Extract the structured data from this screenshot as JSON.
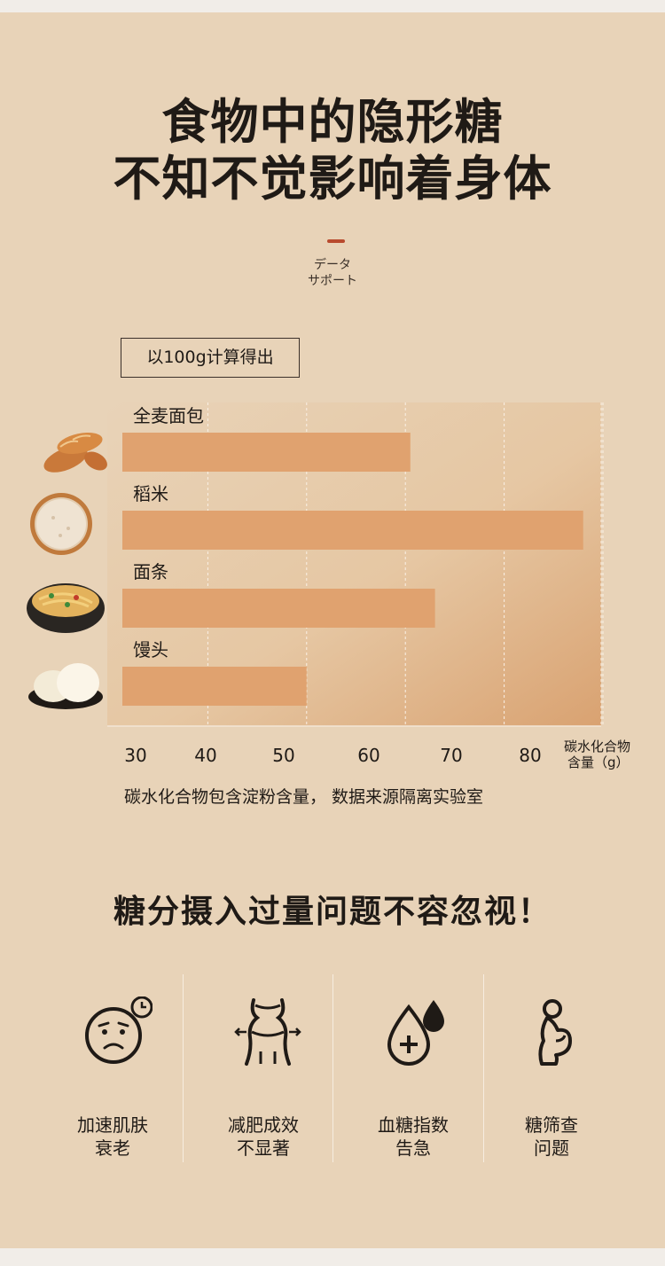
{
  "header": {
    "title_line1": "食物中的隐形糖",
    "title_line2": "不知不觉影响着身体",
    "tag_line1": "データ",
    "tag_line2": "サポート"
  },
  "note": "以100g计算得出",
  "chart_data": {
    "type": "bar",
    "orientation": "horizontal",
    "categories": [
      "全麦面包",
      "稻米",
      "面条",
      "馒头"
    ],
    "values": [
      60.5,
      78,
      63,
      50
    ],
    "xlim": [
      30,
      80
    ],
    "xticks": [
      "30",
      "40",
      "50",
      "60",
      "70",
      "80"
    ],
    "xlabel_line1": "碳水化合物",
    "xlabel_line2": "含量（g）",
    "grid": "vertical-dashed",
    "bar_color": "#e0a26f"
  },
  "footnote": "碳水化合物包含淀粉含量， 数据来源隔离实验室",
  "section2": {
    "title": "糖分摄入过量问题不容忽视！",
    "items": [
      {
        "icon": "aging-face-clock-icon",
        "line1": "加速肌肤",
        "line2": "衰老"
      },
      {
        "icon": "body-waist-icon",
        "line1": "减肥成效",
        "line2": "不显著"
      },
      {
        "icon": "blood-drop-icon",
        "line1": "血糖指数",
        "line2": "告急"
      },
      {
        "icon": "pregnancy-icon",
        "line1": "糖筛查",
        "line2": "问题"
      }
    ]
  },
  "colors": {
    "background": "#e8d3b8",
    "accent": "#b84a2e",
    "bar": "#e0a26f",
    "text": "#1f1a16"
  }
}
